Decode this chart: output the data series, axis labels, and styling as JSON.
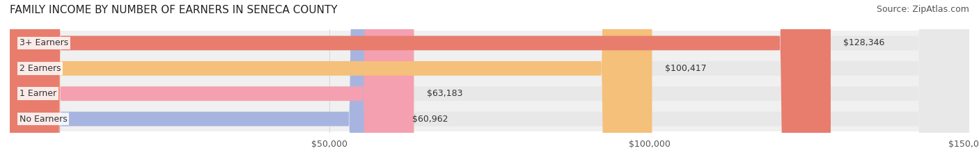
{
  "title": "FAMILY INCOME BY NUMBER OF EARNERS IN SENECA COUNTY",
  "source": "Source: ZipAtlas.com",
  "categories": [
    "No Earners",
    "1 Earner",
    "2 Earners",
    "3+ Earners"
  ],
  "values": [
    60962,
    63183,
    100417,
    128346
  ],
  "labels": [
    "$60,962",
    "$63,183",
    "$100,417",
    "$128,346"
  ],
  "bar_colors": [
    "#a8b4e0",
    "#f4a0b0",
    "#f5c07a",
    "#e87d6e"
  ],
  "bar_bg_color": "#f0f0f0",
  "xlim": [
    0,
    150000
  ],
  "xticks": [
    50000,
    100000,
    150000
  ],
  "xtick_labels": [
    "$50,000",
    "$100,000",
    "$150,000"
  ],
  "title_fontsize": 11,
  "source_fontsize": 9,
  "label_fontsize": 9,
  "category_fontsize": 9,
  "background_color": "#ffffff",
  "bar_height": 0.55,
  "row_bg_colors": [
    "#f5f5f5",
    "#f5f5f5",
    "#f5f5f5",
    "#f5f5f5"
  ]
}
